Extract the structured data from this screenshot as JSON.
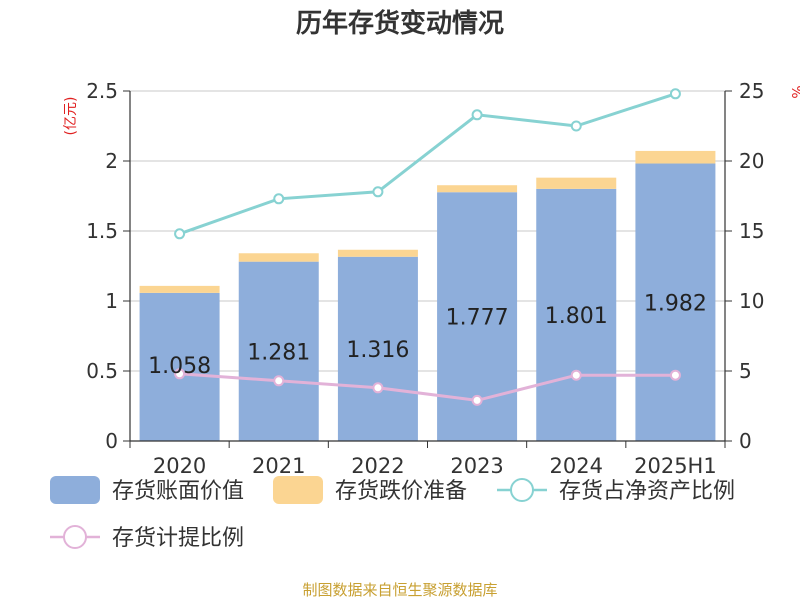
{
  "chart_data": {
    "type": "bar",
    "title": "历年存货变动情况",
    "left_unit": "(亿元)",
    "right_unit": "%",
    "categories": [
      "2020",
      "2021",
      "2022",
      "2023",
      "2024",
      "2025H1"
    ],
    "stack_series": [
      {
        "name": "存货账面价值",
        "color": "#8eaedb",
        "values": [
          1.058,
          1.281,
          1.316,
          1.777,
          1.801,
          1.982
        ]
      },
      {
        "name": "存货跌价准备",
        "color": "#fbd592",
        "values": [
          0.05,
          0.06,
          0.05,
          0.05,
          0.08,
          0.09
        ]
      }
    ],
    "line_series": [
      {
        "name": "存货占净资产比例",
        "color": "#87d2d2",
        "values": [
          14.8,
          17.3,
          17.8,
          23.3,
          22.5,
          24.8
        ]
      },
      {
        "name": "存货计提比例",
        "color": "#e2b2d8",
        "values": [
          4.8,
          4.3,
          3.8,
          2.9,
          4.7,
          4.7
        ]
      }
    ],
    "data_labels": [
      "1.058",
      "1.281",
      "1.316",
      "1.777",
      "1.801",
      "1.982"
    ],
    "y_left": {
      "min": 0,
      "max": 2.5,
      "ticks": [
        "0",
        "0.5",
        "1",
        "1.5",
        "2",
        "2.5"
      ]
    },
    "y_right": {
      "min": 0,
      "max": 25,
      "ticks": [
        "0",
        "5",
        "10",
        "15",
        "20",
        "25"
      ]
    },
    "grid": true,
    "legend_position": "bottom"
  },
  "source": "制图数据来自恒生聚源数据库"
}
